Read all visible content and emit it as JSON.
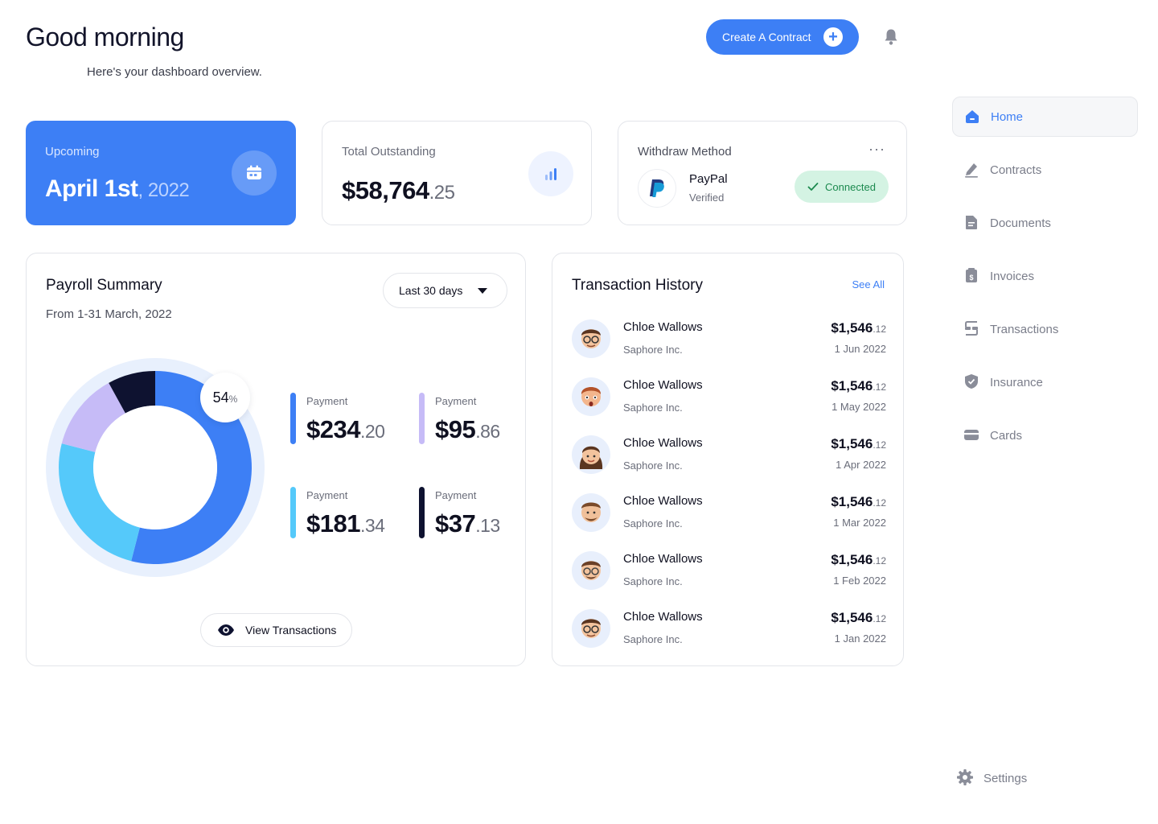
{
  "header": {
    "greeting": "Good morning",
    "subtitle": "Here's your dashboard overview.",
    "create_label": "Create A Contract"
  },
  "upcoming": {
    "label": "Upcoming",
    "date_main": "April 1st",
    "date_year": ", 2022"
  },
  "outstanding": {
    "label": "Total Outstanding",
    "amount_main": "$58,764",
    "amount_cents": ".25"
  },
  "withdraw": {
    "label": "Withdraw Method",
    "more": "···",
    "provider": "PayPal",
    "provider_status": "Verified",
    "badge": "Connected"
  },
  "payroll": {
    "title": "Payroll Summary",
    "range": "From 1-31 March, 2022",
    "filter": "Last 30 days",
    "percent": "54",
    "percent_unit": "%",
    "view_label": "View Transactions",
    "payments": [
      {
        "label": "Payment",
        "main": "$234",
        "cents": ".20",
        "color": "#3d7ff5"
      },
      {
        "label": "Payment",
        "main": "$95",
        "cents": ".86",
        "color": "#c6bbf7"
      },
      {
        "label": "Payment",
        "main": "$181",
        "cents": ".34",
        "color": "#55c9fa"
      },
      {
        "label": "Payment",
        "main": "$37",
        "cents": ".13",
        "color": "#0e1230"
      }
    ]
  },
  "chart_data": {
    "type": "pie",
    "categories": [
      "Payment $234.20",
      "Payment $181.34",
      "Payment $95.86",
      "Payment $37.13"
    ],
    "values": [
      54,
      25,
      13,
      8
    ],
    "colors": [
      "#3d7ff5",
      "#55c9fa",
      "#c6bbf7",
      "#0e1230"
    ],
    "highlight_label": "54%"
  },
  "history": {
    "title": "Transaction History",
    "see_all": "See All",
    "rows": [
      {
        "name": "Chloe Wallows",
        "company": "Saphore Inc.",
        "amount_main": "$1,546",
        "amount_cents": ".12",
        "date": "1 Jun 2022"
      },
      {
        "name": "Chloe Wallows",
        "company": "Saphore Inc.",
        "amount_main": "$1,546",
        "amount_cents": ".12",
        "date": "1 May 2022"
      },
      {
        "name": "Chloe Wallows",
        "company": "Saphore Inc.",
        "amount_main": "$1,546",
        "amount_cents": ".12",
        "date": "1 Apr 2022"
      },
      {
        "name": "Chloe Wallows",
        "company": "Saphore Inc.",
        "amount_main": "$1,546",
        "amount_cents": ".12",
        "date": "1 Mar 2022"
      },
      {
        "name": "Chloe Wallows",
        "company": "Saphore Inc.",
        "amount_main": "$1,546",
        "amount_cents": ".12",
        "date": "1 Feb 2022"
      },
      {
        "name": "Chloe Wallows",
        "company": "Saphore Inc.",
        "amount_main": "$1,546",
        "amount_cents": ".12",
        "date": "1 Jan 2022"
      }
    ]
  },
  "sidebar": {
    "items": [
      {
        "label": "Home",
        "icon": "home-icon"
      },
      {
        "label": "Contracts",
        "icon": "pen-icon"
      },
      {
        "label": "Documents",
        "icon": "document-icon"
      },
      {
        "label": "Invoices",
        "icon": "invoice-icon"
      },
      {
        "label": "Transactions",
        "icon": "transactions-icon"
      },
      {
        "label": "Insurance",
        "icon": "shield-icon"
      },
      {
        "label": "Cards",
        "icon": "card-icon"
      }
    ],
    "settings": "Settings"
  },
  "colors": {
    "accent": "#3d7ff5",
    "success_bg": "#d4f3e3",
    "success_text": "#1c8a4f"
  }
}
